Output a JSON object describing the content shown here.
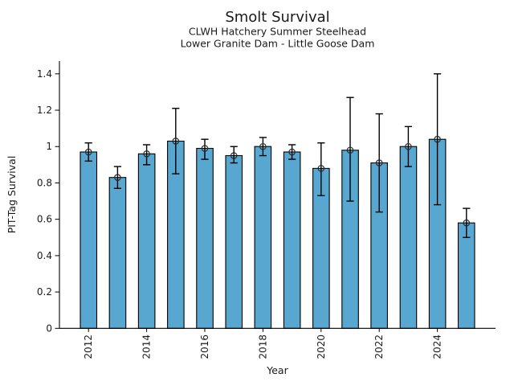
{
  "chart_data": {
    "type": "bar",
    "title": "Smolt Survival",
    "subtitle": [
      "CLWH Hatchery Summer Steelhead",
      "Lower Granite Dam - Little Goose Dam"
    ],
    "xlabel": "Year",
    "ylabel": "PIT-Tag Survival",
    "categories": [
      2012,
      2013,
      2014,
      2015,
      2016,
      2017,
      2018,
      2019,
      2020,
      2021,
      2022,
      2023,
      2024,
      2025
    ],
    "values": [
      0.97,
      0.83,
      0.96,
      1.03,
      0.99,
      0.95,
      1.0,
      0.97,
      0.88,
      0.98,
      0.91,
      1.0,
      1.04,
      0.58
    ],
    "error_low": [
      0.92,
      0.77,
      0.9,
      0.85,
      0.93,
      0.91,
      0.95,
      0.93,
      0.73,
      0.7,
      0.64,
      0.89,
      0.68,
      0.5
    ],
    "error_high": [
      1.02,
      0.89,
      1.01,
      1.21,
      1.04,
      1.0,
      1.05,
      1.01,
      1.02,
      1.27,
      1.18,
      1.11,
      1.4,
      0.66
    ],
    "xtick_years": [
      2012,
      2014,
      2016,
      2018,
      2020,
      2022,
      2024
    ],
    "ytick_values": [
      0,
      0.2,
      0.4,
      0.6,
      0.8,
      1,
      1.2,
      1.4
    ],
    "ytick_labels": [
      "0",
      "0.2",
      "0.4",
      "0.6",
      "0.8",
      "1",
      "1.2",
      "1.4"
    ],
    "xlim": [
      2011,
      2026
    ],
    "ylim": [
      0,
      1.47
    ],
    "grid": false,
    "legend": null,
    "marker": "open-circle",
    "bar_color": "#57A7D0",
    "bar_edge_color": "#000000",
    "error_bar_color": "#000000",
    "axis_color": "#000000",
    "background_color": "#FFFFFF"
  }
}
